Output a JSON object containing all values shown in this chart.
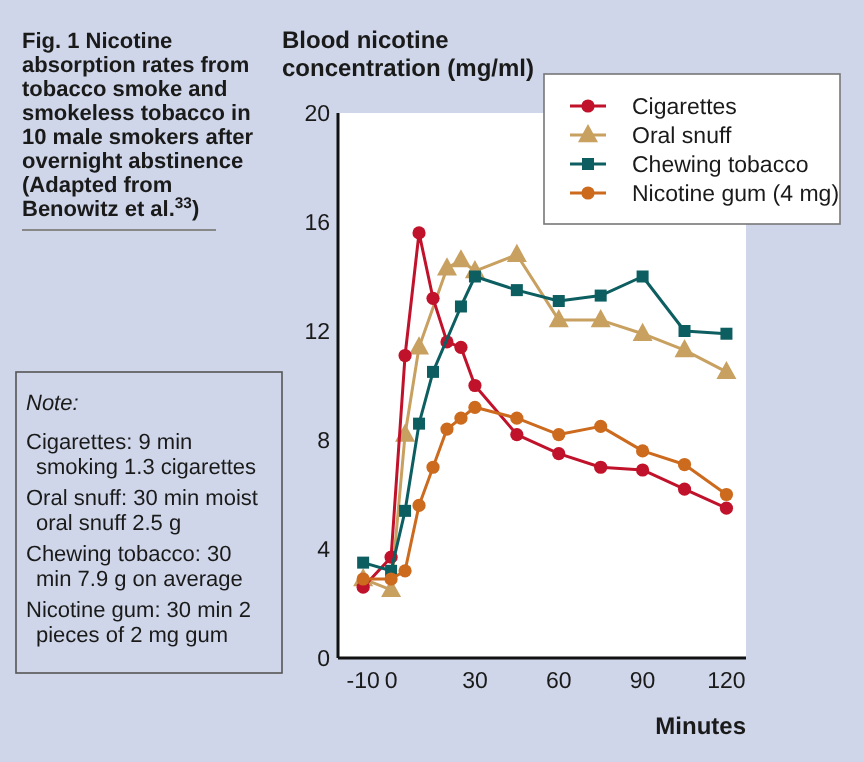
{
  "chart_data": {
    "type": "line",
    "title": "Fig. 1 Nicotine absorption rates from tobacco smoke and smokeless tobacco in 10 male smokers after overnight abstinence (Adapted from Benowitz et al.$^{33}$)",
    "ylabel": "Blood nicotine concentration (mg/ml)",
    "xlabel": "Minutes",
    "annotations": [
      "Note:",
      "Cigarettes: 9 min smoking 1.3 cigarettes",
      "Oral snuff: 30 min moist oral snuff 2.5 g",
      "Chewing tobacco: 30 min 7.9 g on average",
      "Nicotine gum: 30 min 2 pieces of 2 mg gum"
    ],
    "xlim": [
      -19,
      127
    ],
    "xticks": [
      -10,
      0,
      30,
      60,
      90,
      120
    ],
    "ylim": [
      0,
      20
    ],
    "yticks": [
      0,
      4,
      8,
      12,
      16,
      20
    ],
    "grid": false,
    "legend": "top right",
    "line_style": "solid",
    "series": [
      {
        "name": "Cigarettes",
        "color": "#c0122a",
        "marker": "circle",
        "x": [
          -10,
          0,
          5,
          10,
          15,
          20,
          25,
          30,
          45,
          60,
          75,
          90,
          105,
          120
        ],
        "values": [
          2.6,
          3.7,
          11.1,
          15.6,
          13.2,
          11.6,
          11.4,
          10.0,
          8.2,
          7.5,
          7.0,
          6.9,
          6.2,
          5.5
        ]
      },
      {
        "name": "Oral snuff",
        "color": "#c8a060",
        "marker": "triangle",
        "x": [
          -10,
          0,
          5,
          10,
          20,
          25,
          30,
          45,
          60,
          75,
          90,
          105,
          120
        ],
        "values": [
          2.9,
          2.5,
          8.2,
          11.4,
          14.3,
          14.6,
          14.2,
          14.8,
          12.4,
          12.4,
          11.9,
          11.3,
          10.5
        ]
      },
      {
        "name": "Chewing tobacco",
        "color": "#0d5e60",
        "marker": "square",
        "x": [
          -10,
          0,
          5,
          10,
          15,
          25,
          30,
          45,
          60,
          75,
          90,
          105,
          120
        ],
        "values": [
          3.5,
          3.2,
          5.4,
          8.6,
          10.5,
          12.9,
          14.0,
          13.5,
          13.1,
          13.3,
          14.0,
          12.0,
          11.9
        ]
      },
      {
        "name": "Nicotine gum (4 mg)",
        "color": "#cc6a1e",
        "marker": "circle",
        "x": [
          -10,
          0,
          5,
          10,
          15,
          20,
          25,
          30,
          45,
          60,
          75,
          90,
          105,
          120
        ],
        "values": [
          2.9,
          2.9,
          3.2,
          5.6,
          7.0,
          8.4,
          8.8,
          9.2,
          8.8,
          8.2,
          8.5,
          7.6,
          7.1,
          6.0
        ]
      }
    ]
  }
}
